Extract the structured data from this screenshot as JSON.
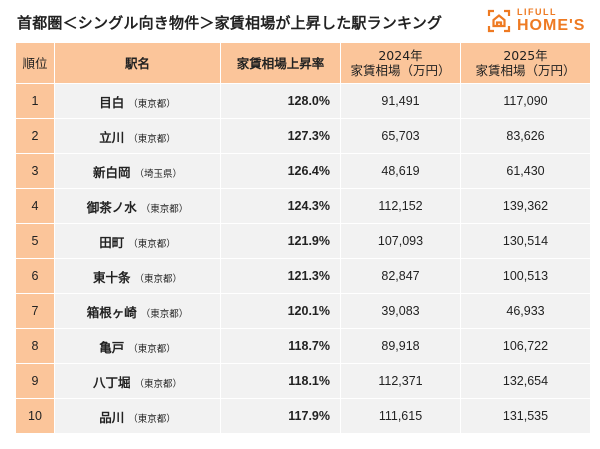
{
  "header": {
    "title": "首都圏＜シングル向き物件＞家賃相場が上昇した駅ランキング",
    "logo": {
      "small": "LIFULL",
      "big": "HOME'S",
      "icon": "house-frame-icon",
      "color": "#ee7a22"
    }
  },
  "table": {
    "columns": [
      {
        "label": "順位"
      },
      {
        "label": "駅名"
      },
      {
        "label": "家賃相場上昇率"
      },
      {
        "line1": "2024年",
        "line2": "家賃相場（万円）"
      },
      {
        "line1": "2025年",
        "line2": "家賃相場（万円）"
      }
    ],
    "rows": [
      {
        "rank": "1",
        "station": "目白",
        "pref": "（東京都）",
        "rate": "128.0%",
        "y2024": "91,491",
        "y2025": "117,090"
      },
      {
        "rank": "2",
        "station": "立川",
        "pref": "（東京都）",
        "rate": "127.3%",
        "y2024": "65,703",
        "y2025": "83,626"
      },
      {
        "rank": "3",
        "station": "新白岡",
        "pref": "（埼玉県）",
        "rate": "126.4%",
        "y2024": "48,619",
        "y2025": "61,430"
      },
      {
        "rank": "4",
        "station": "御茶ノ水",
        "pref": "（東京都）",
        "rate": "124.3%",
        "y2024": "112,152",
        "y2025": "139,362"
      },
      {
        "rank": "5",
        "station": "田町",
        "pref": "（東京都）",
        "rate": "121.9%",
        "y2024": "107,093",
        "y2025": "130,514"
      },
      {
        "rank": "6",
        "station": "東十条",
        "pref": "（東京都）",
        "rate": "121.3%",
        "y2024": "82,847",
        "y2025": "100,513"
      },
      {
        "rank": "7",
        "station": "箱根ヶ崎",
        "pref": "（東京都）",
        "rate": "120.1%",
        "y2024": "39,083",
        "y2025": "46,933"
      },
      {
        "rank": "8",
        "station": "亀戸",
        "pref": "（東京都）",
        "rate": "118.7%",
        "y2024": "89,918",
        "y2025": "106,722"
      },
      {
        "rank": "9",
        "station": "八丁堀",
        "pref": "（東京都）",
        "rate": "118.1%",
        "y2024": "112,371",
        "y2025": "132,654"
      },
      {
        "rank": "10",
        "station": "品川",
        "pref": "（東京都）",
        "rate": "117.9%",
        "y2024": "111,615",
        "y2025": "131,535"
      }
    ]
  },
  "colors": {
    "header_bg": "#fbc59a",
    "cell_bg": "#f2f2f2",
    "brand": "#ee7a22"
  }
}
